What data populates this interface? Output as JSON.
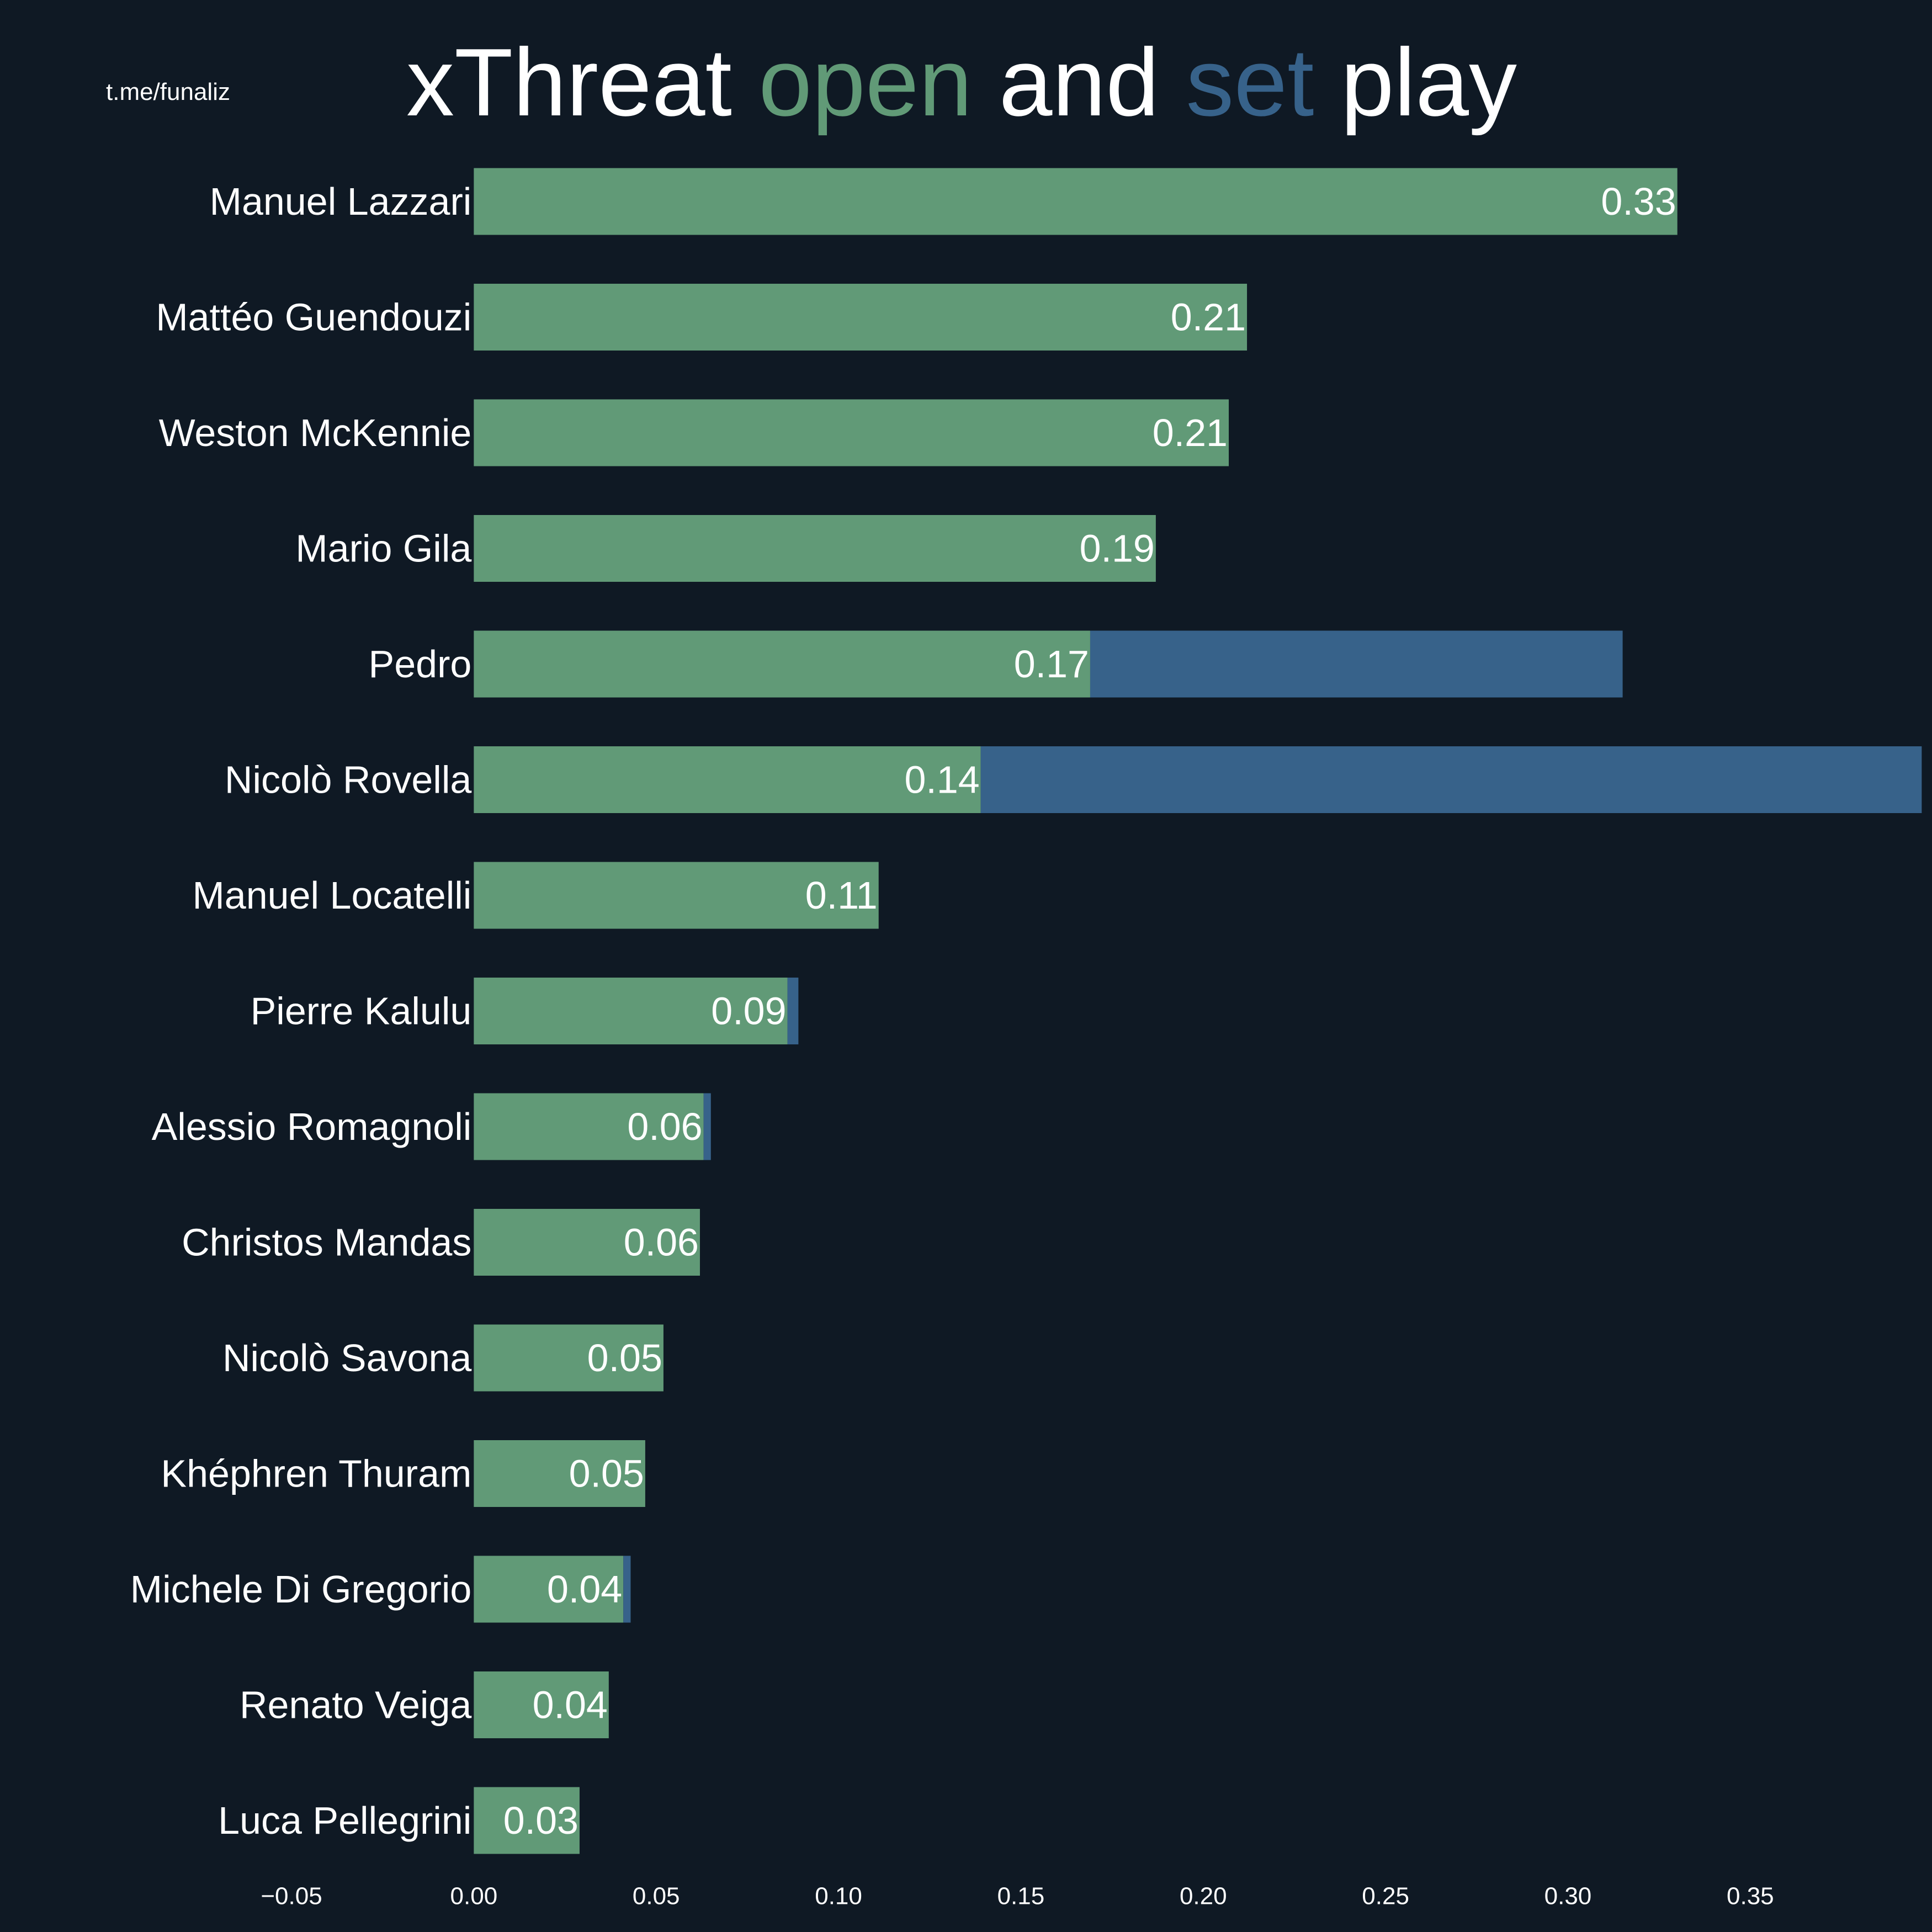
{
  "credit": "t.me/funaliz",
  "title": {
    "part1": "xThreat ",
    "open_word": "open",
    "part2": " and ",
    "set_word": "set",
    "part3": " play"
  },
  "colors": {
    "background": "#0f1924",
    "open_play": "#619a77",
    "set_play": "#37628a",
    "text": "#ffffff"
  },
  "chart_data": {
    "type": "bar",
    "orientation": "horizontal",
    "stacked": true,
    "categories": [
      "Manuel Lazzari",
      "Mattéo Guendouzi",
      "Weston McKennie",
      "Mario Gila",
      "Pedro",
      "Nicolò Rovella",
      "Manuel Locatelli",
      "Pierre Kalulu",
      "Alessio Romagnoli",
      "Christos Mandas",
      "Nicolò Savona",
      "Khéphren Thuram",
      "Michele Di Gregorio",
      "Renato Veiga",
      "Luca Pellegrini"
    ],
    "series": [
      {
        "name": "open",
        "values": [
          0.33,
          0.212,
          0.207,
          0.187,
          0.169,
          0.139,
          0.111,
          0.086,
          0.063,
          0.062,
          0.052,
          0.047,
          0.041,
          0.037,
          0.029
        ]
      },
      {
        "name": "set",
        "values": [
          0.0,
          0.0,
          0.0,
          0.0,
          0.146,
          0.258,
          0.0,
          0.003,
          0.002,
          0.0,
          0.0,
          0.0,
          0.002,
          0.0,
          0.0
        ]
      }
    ],
    "data_labels": [
      "0.33",
      "0.21",
      "0.21",
      "0.19",
      "0.17",
      "0.14",
      "0.11",
      "0.09",
      "0.06",
      "0.06",
      "0.05",
      "0.05",
      "0.04",
      "0.04",
      "0.03"
    ],
    "xlim": [
      -0.05,
      0.375
    ],
    "xticks": [
      -0.05,
      0.0,
      0.05,
      0.1,
      0.15,
      0.2,
      0.25,
      0.3,
      0.35
    ],
    "xtick_labels": [
      "−0.05",
      "0.00",
      "0.05",
      "0.10",
      "0.15",
      "0.20",
      "0.25",
      "0.30",
      "0.35"
    ],
    "xlabel": "",
    "ylabel": "",
    "grid": false,
    "legend": "none"
  }
}
